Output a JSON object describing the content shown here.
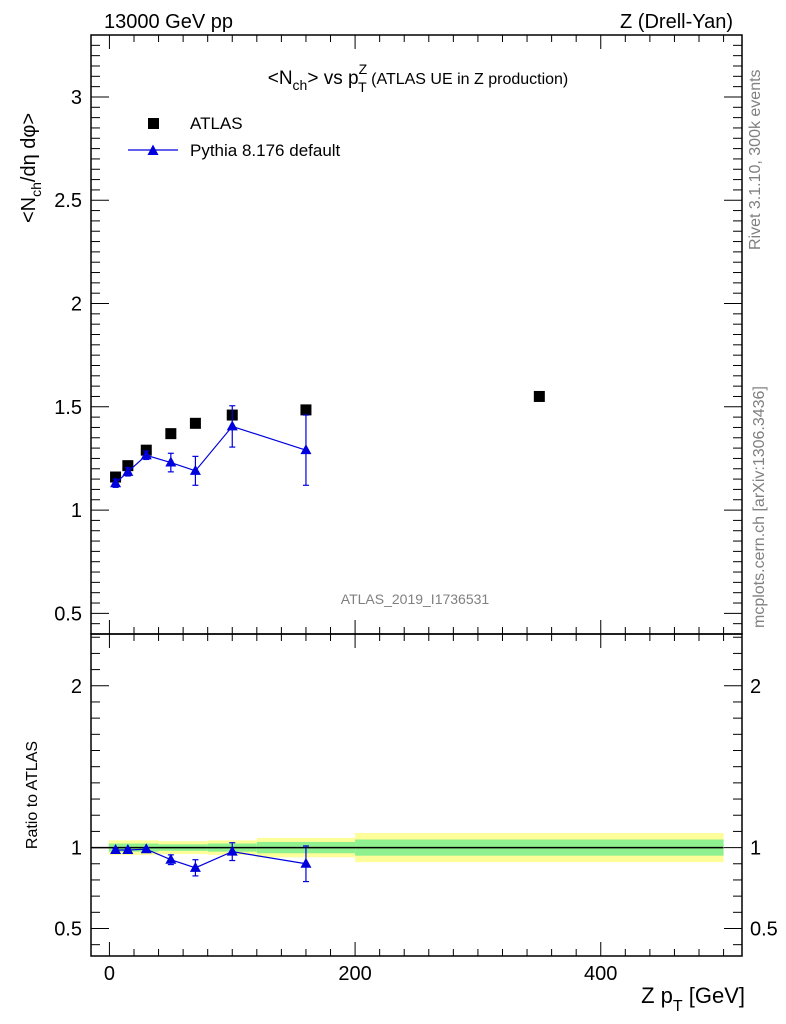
{
  "header": {
    "left": "13000 GeV pp",
    "right": "Z (Drell-Yan)"
  },
  "side_texts": {
    "rivet": "Rivet 3.1.10,  300k events",
    "mcplots": "mcplots.cern.ch [arXiv:1306.3436]"
  },
  "watermark": "ATLAS_2019_I1736531",
  "chart_data": [
    {
      "type": "scatter",
      "title_parts": {
        "pre": "<N",
        "sub1": "ch",
        "mid": "> vs p",
        "sup": "Z",
        "sub2": "T",
        "post": " (ATLAS UE in Z production)"
      },
      "ylabel": "<N_ch/dη dφ>",
      "ylim": [
        0.4,
        3.3
      ],
      "yticks": [
        "0.5",
        "1",
        "1.5",
        "2",
        "2.5",
        "3"
      ],
      "legend": {
        "placement": "top-left",
        "entries": [
          "ATLAS",
          "Pythia 8.176 default"
        ]
      },
      "series": [
        {
          "name": "ATLAS",
          "marker": "square",
          "color": "#000000",
          "x": [
            5,
            15,
            30,
            50,
            70,
            100,
            160,
            350
          ],
          "y": [
            1.16,
            1.215,
            1.29,
            1.37,
            1.42,
            1.46,
            1.485,
            1.55
          ]
        },
        {
          "name": "Pythia 8.176 default",
          "marker": "triangle",
          "color": "#0000dd",
          "x": [
            5,
            15,
            30,
            50,
            70,
            100,
            160
          ],
          "y": [
            1.13,
            1.185,
            1.265,
            1.23,
            1.19,
            1.405,
            1.29
          ],
          "yerr": [
            0.02,
            0.02,
            0.02,
            0.045,
            0.07,
            0.1,
            0.17
          ]
        }
      ]
    },
    {
      "type": "scatter",
      "ylabel": "Ratio to ATLAS",
      "xlabel": "Z p_T [GeV]",
      "xlim": [
        -15,
        515
      ],
      "ylim": [
        0.33,
        2.32
      ],
      "xticks": [
        "0",
        "200",
        "400"
      ],
      "yticks": [
        "0.5",
        "1",
        "2"
      ],
      "bands": [
        {
          "x0": -0.5,
          "x1": 40,
          "inner": 0.025,
          "outer": 0.045
        },
        {
          "x0": 40,
          "x1": 80,
          "inner": 0.02,
          "outer": 0.04
        },
        {
          "x0": 80,
          "x1": 120,
          "inner": 0.025,
          "outer": 0.045
        },
        {
          "x0": 120,
          "x1": 200,
          "inner": 0.035,
          "outer": 0.06
        },
        {
          "x0": 200,
          "x1": 500,
          "inner": 0.05,
          "outer": 0.09
        }
      ],
      "band_colors": {
        "inner": "#8ef08e",
        "outer": "#fdfd9a"
      },
      "series": [
        {
          "name": "Pythia 8.176 default",
          "marker": "triangle",
          "color": "#0000dd",
          "x": [
            5,
            15,
            30,
            50,
            70,
            100,
            160
          ],
          "y": [
            0.985,
            0.985,
            0.99,
            0.925,
            0.875,
            0.975,
            0.9
          ],
          "yerr": [
            0.01,
            0.01,
            0.01,
            0.03,
            0.05,
            0.055,
            0.11
          ]
        }
      ]
    }
  ]
}
